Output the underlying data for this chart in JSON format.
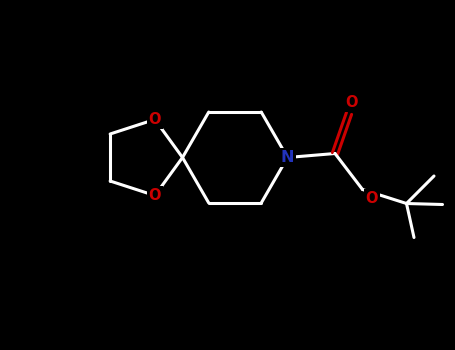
{
  "background_color": "#000000",
  "bond_color_white": "#FFFFFF",
  "N_color": "#2233BB",
  "O_color": "#CC0000",
  "line_width": 2.2,
  "figsize": [
    4.55,
    3.5
  ],
  "dpi": 100,
  "xlim": [
    0,
    9.1
  ],
  "ylim": [
    0,
    7.0
  ]
}
